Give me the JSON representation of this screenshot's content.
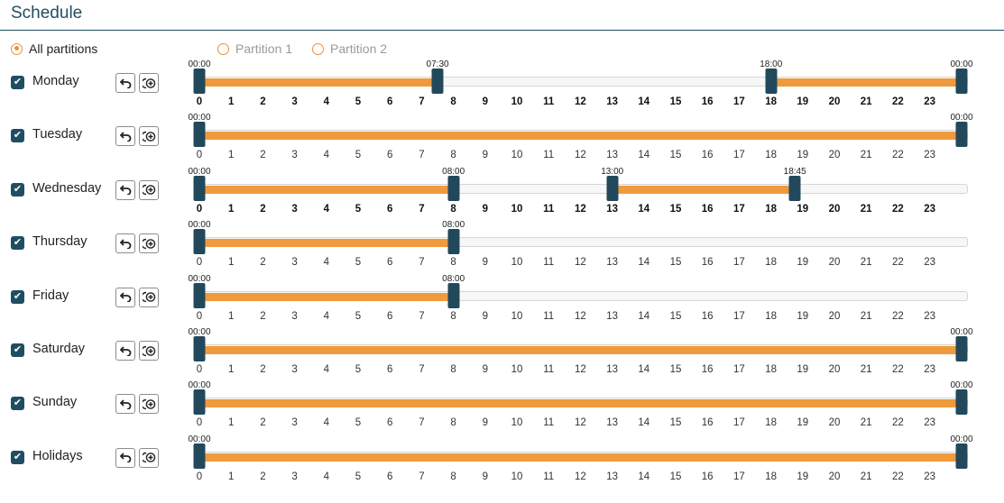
{
  "title": "Schedule",
  "partitions": [
    {
      "label": "All partitions",
      "checked": true
    },
    {
      "label": "Partition 1",
      "checked": false
    },
    {
      "label": "Partition 2",
      "checked": false
    }
  ],
  "colors": {
    "accent": "#ef9a3c",
    "handle": "#22495b",
    "title": "#1f4e62"
  },
  "hours": [
    "0",
    "1",
    "2",
    "3",
    "4",
    "5",
    "6",
    "7",
    "8",
    "9",
    "10",
    "11",
    "12",
    "13",
    "14",
    "15",
    "16",
    "17",
    "18",
    "19",
    "20",
    "21",
    "22",
    "23"
  ],
  "days": [
    {
      "label": "Monday",
      "checked": true,
      "ranges": [
        {
          "start": "00:00",
          "end": "07:30"
        },
        {
          "start": "18:00",
          "end": "00:00"
        }
      ]
    },
    {
      "label": "Tuesday",
      "checked": true,
      "ranges": [
        {
          "start": "00:00",
          "end": "00:00"
        }
      ]
    },
    {
      "label": "Wednesday",
      "checked": true,
      "ranges": [
        {
          "start": "00:00",
          "end": "08:00"
        },
        {
          "start": "13:00",
          "end": "18:45"
        }
      ]
    },
    {
      "label": "Thursday",
      "checked": true,
      "ranges": [
        {
          "start": "00:00",
          "end": "08:00"
        }
      ]
    },
    {
      "label": "Friday",
      "checked": true,
      "ranges": [
        {
          "start": "00:00",
          "end": "08:00"
        }
      ]
    },
    {
      "label": "Saturday",
      "checked": true,
      "ranges": [
        {
          "start": "00:00",
          "end": "00:00"
        }
      ]
    },
    {
      "label": "Sunday",
      "checked": true,
      "ranges": [
        {
          "start": "00:00",
          "end": "00:00"
        }
      ]
    },
    {
      "label": "Holidays",
      "checked": true,
      "ranges": [
        {
          "start": "00:00",
          "end": "00:00"
        }
      ]
    }
  ],
  "icons": {
    "undo": "undo-icon",
    "add": "add-schedule-icon",
    "check": "checkmark-icon"
  }
}
